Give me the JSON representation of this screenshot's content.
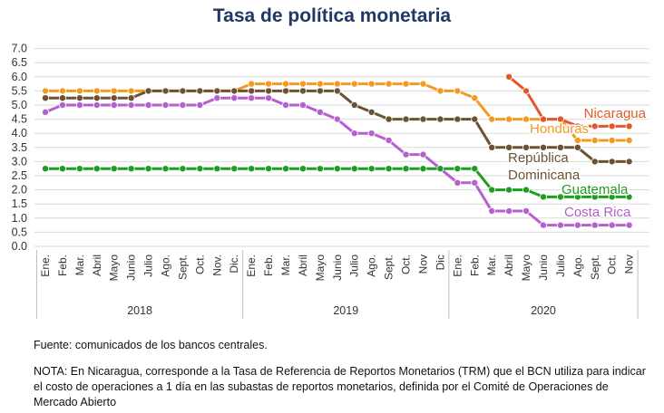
{
  "chart_data": {
    "type": "line",
    "title": "Tasa de política monetaria",
    "ylim": [
      0,
      7
    ],
    "y_ticks": [
      "0.0",
      "0.5",
      "1.0",
      "1.5",
      "2.0",
      "2.5",
      "3.0",
      "3.5",
      "4.0",
      "4.5",
      "5.0",
      "5.5",
      "6.0",
      "6.5",
      "7.0"
    ],
    "grid": "horizontal",
    "x": [
      "Ene.",
      "Feb.",
      "Mar.",
      "Abril",
      "Mayo",
      "Junio",
      "Julio",
      "Ago.",
      "Sept.",
      "Oct.",
      "Nov.",
      "Dic.",
      "Ene.",
      "Feb.",
      "Mar.",
      "Abril",
      "Mayo",
      "Junio",
      "Julio",
      "Ago.",
      "Sept.",
      "Oct.",
      "Nov",
      "Dic",
      "Ene.",
      "Feb.",
      "Mar.",
      "Abril",
      "Mayo",
      "Junio",
      "Julio",
      "Ago.",
      "Sept.",
      "Oct.",
      "Nov"
    ],
    "year_groups": [
      {
        "label": "2018",
        "start": 0,
        "end": 11
      },
      {
        "label": "2019",
        "start": 12,
        "end": 23
      },
      {
        "label": "2020",
        "start": 24,
        "end": 34
      }
    ],
    "series": [
      {
        "name": "Honduras",
        "color": "#f39a21",
        "values": [
          5.5,
          5.5,
          5.5,
          5.5,
          5.5,
          5.5,
          5.5,
          5.5,
          5.5,
          5.5,
          5.5,
          5.5,
          5.75,
          5.75,
          5.75,
          5.75,
          5.75,
          5.75,
          5.75,
          5.75,
          5.75,
          5.75,
          5.75,
          5.5,
          5.5,
          5.25,
          4.5,
          4.5,
          4.5,
          4.5,
          4.5,
          3.75,
          3.75,
          3.75,
          3.75
        ]
      },
      {
        "name": "República Dominicana",
        "color": "#6b5232",
        "values": [
          5.25,
          5.25,
          5.25,
          5.25,
          5.25,
          5.25,
          5.5,
          5.5,
          5.5,
          5.5,
          5.5,
          5.5,
          5.5,
          5.5,
          5.5,
          5.5,
          5.5,
          5.5,
          5.0,
          4.75,
          4.5,
          4.5,
          4.5,
          4.5,
          4.5,
          4.5,
          3.5,
          3.5,
          3.5,
          3.5,
          3.5,
          3.5,
          3.0,
          3.0,
          3.0
        ]
      },
      {
        "name": "Costa Rica",
        "color": "#b65fcf",
        "values": [
          4.75,
          5.0,
          5.0,
          5.0,
          5.0,
          5.0,
          5.0,
          5.0,
          5.0,
          5.0,
          5.25,
          5.25,
          5.25,
          5.25,
          5.0,
          5.0,
          4.75,
          4.5,
          4.0,
          4.0,
          3.75,
          3.25,
          3.25,
          2.75,
          2.25,
          2.25,
          1.25,
          1.25,
          1.25,
          0.75,
          0.75,
          0.75,
          0.75,
          0.75,
          0.75
        ]
      },
      {
        "name": "Guatemala",
        "color": "#1e9e1e",
        "values": [
          2.75,
          2.75,
          2.75,
          2.75,
          2.75,
          2.75,
          2.75,
          2.75,
          2.75,
          2.75,
          2.75,
          2.75,
          2.75,
          2.75,
          2.75,
          2.75,
          2.75,
          2.75,
          2.75,
          2.75,
          2.75,
          2.75,
          2.75,
          2.75,
          2.75,
          2.75,
          2.0,
          2.0,
          2.0,
          1.75,
          1.75,
          1.75,
          1.75,
          1.75,
          1.75
        ]
      },
      {
        "name": "Nicaragua",
        "color": "#e2572b",
        "values": [
          null,
          null,
          null,
          null,
          null,
          null,
          null,
          null,
          null,
          null,
          null,
          null,
          null,
          null,
          null,
          null,
          null,
          null,
          null,
          null,
          null,
          null,
          null,
          null,
          null,
          null,
          null,
          6.0,
          5.5,
          4.5,
          4.5,
          4.25,
          4.25,
          4.25,
          4.25
        ]
      }
    ],
    "labels": [
      {
        "text": "Nicaragua",
        "color": "#e2572b"
      },
      {
        "text": "Honduras",
        "color": "#f39a21"
      },
      {
        "text": "República",
        "color": "#6b5232"
      },
      {
        "text": "Dominicana",
        "color": "#6b5232"
      },
      {
        "text": "Guatemala",
        "color": "#1e9e1e"
      },
      {
        "text": "Costa Rica",
        "color": "#b65fcf"
      }
    ]
  },
  "notes": {
    "source": "Fuente: comunicados de los bancos centrales.",
    "footnote": "NOTA: En Nicaragua, corresponde a la Tasa de Referencia de Reportos Monetarios (TRM) que el BCN utiliza para indicar el costo de operaciones a 1 día en las subastas de reportos monetarios, definida por el Comité de Operaciones de Mercado Abierto"
  }
}
